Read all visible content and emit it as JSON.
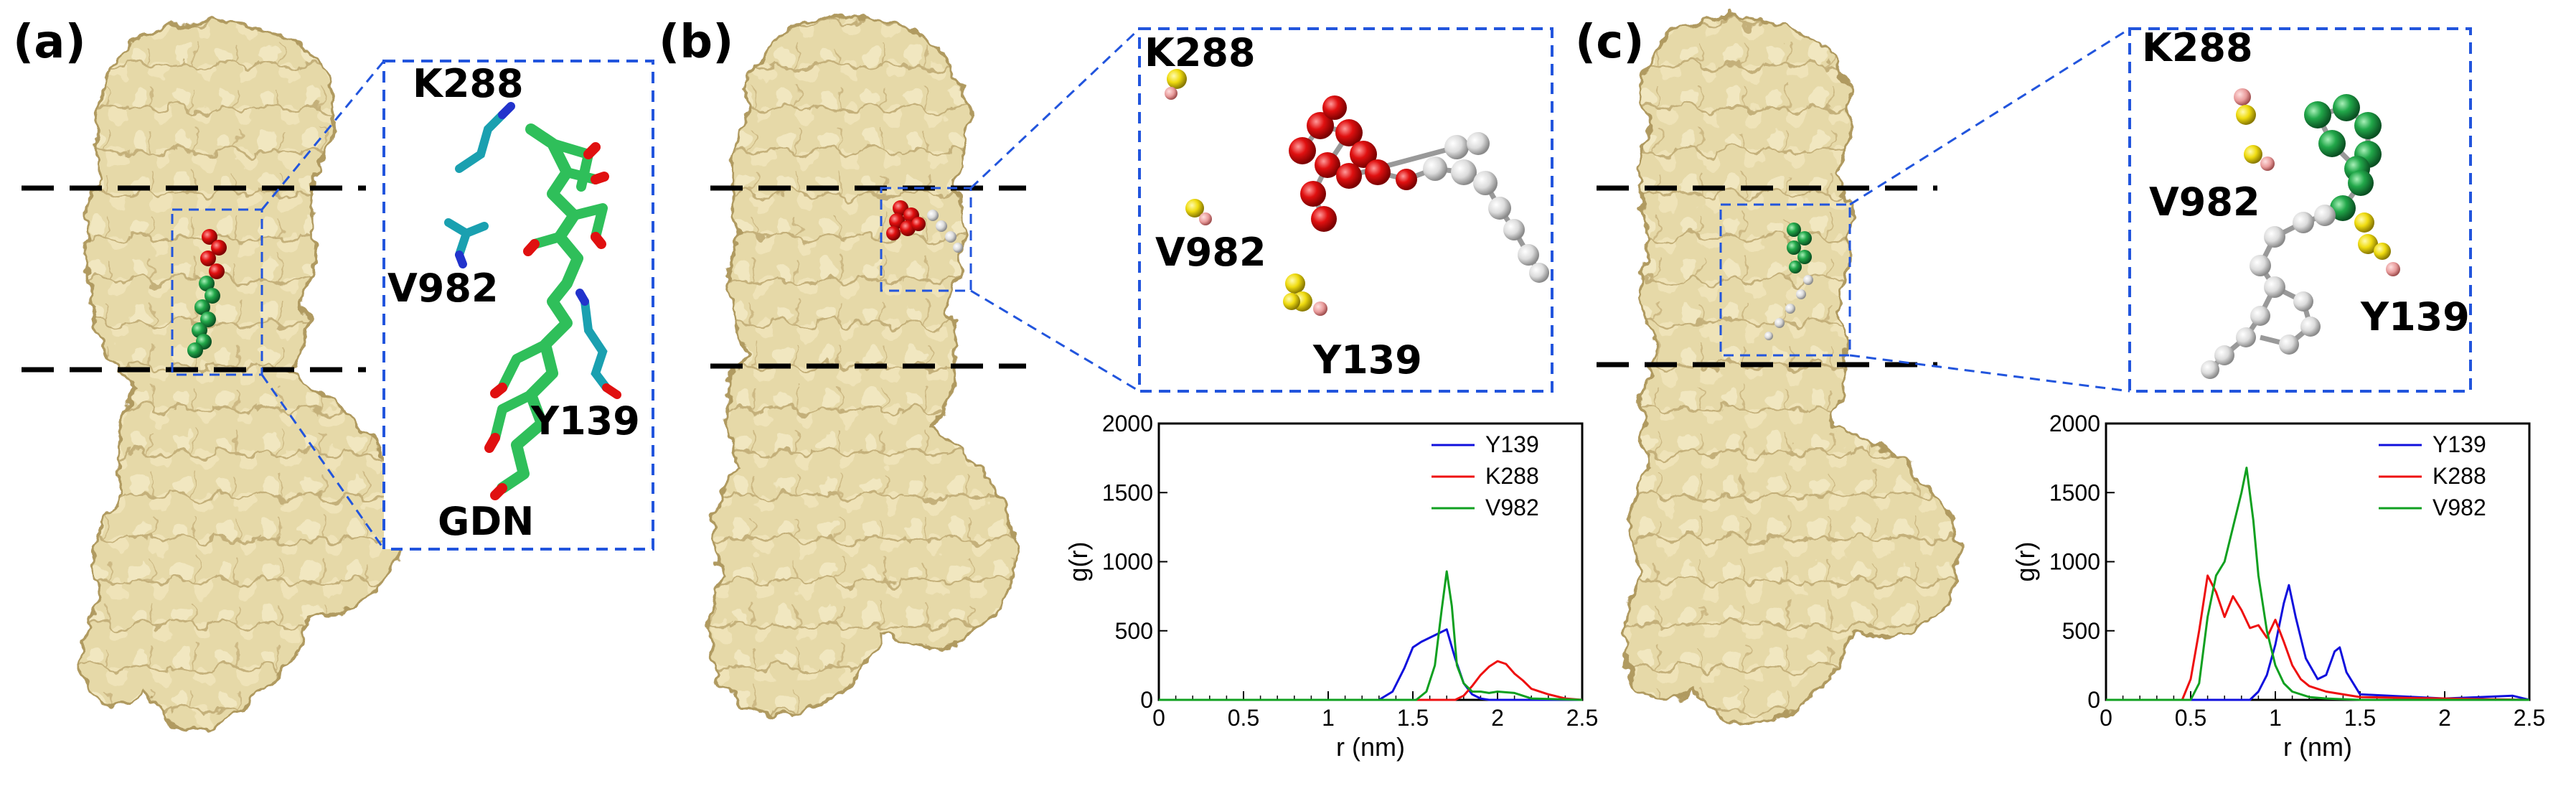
{
  "panels": [
    {
      "label": "(a)",
      "residues": [
        "K288",
        "V982",
        "Y139"
      ],
      "ligand": "GDN",
      "ligand_color": "#2fbf5a"
    },
    {
      "label": "(b)",
      "residues": [
        "K288",
        "V982",
        "Y139"
      ],
      "ligand_color": "#e01010"
    },
    {
      "label": "(c)",
      "residues": [
        "K288",
        "V982",
        "Y139"
      ],
      "ligand_color": "#22a84a"
    }
  ],
  "colors": {
    "protein_surface": "#e8dcae",
    "protein_shadow": "#b9a56e",
    "membrane_lines": "#000000",
    "zoom_box": "#2255dd",
    "residue_atoms": "#f2e21a",
    "residue_tip": "#f0a0a0",
    "y139_line": "#1010dd",
    "k288_line": "#ee1010",
    "v982_line": "#10a020"
  },
  "chart_data": [
    {
      "type": "line",
      "xlabel": "r (nm)",
      "ylabel": "g(r)",
      "xlim": [
        0,
        2.5
      ],
      "ylim": [
        0,
        2000
      ],
      "xticks": [
        "0",
        "0.5",
        "1",
        "1.5",
        "2",
        "2.5"
      ],
      "yticks": [
        "0",
        "500",
        "1000",
        "1500",
        "2000"
      ],
      "legend_position": "top-right",
      "series": [
        {
          "name": "Y139",
          "color": "#1010dd",
          "x": [
            0,
            1.3,
            1.38,
            1.45,
            1.5,
            1.55,
            1.6,
            1.65,
            1.7,
            1.75,
            1.8,
            1.85,
            1.9,
            1.95,
            2.0,
            2.5
          ],
          "y": [
            0,
            0,
            60,
            230,
            380,
            420,
            450,
            480,
            510,
            300,
            120,
            40,
            10,
            0,
            0,
            0
          ]
        },
        {
          "name": "K288",
          "color": "#ee1010",
          "x": [
            0,
            1.75,
            1.8,
            1.85,
            1.9,
            1.95,
            2.0,
            2.05,
            2.1,
            2.15,
            2.2,
            2.3,
            2.4,
            2.5
          ],
          "y": [
            0,
            0,
            30,
            100,
            180,
            240,
            280,
            260,
            190,
            140,
            80,
            40,
            10,
            0
          ]
        },
        {
          "name": "V982",
          "color": "#10a020",
          "x": [
            0,
            1.52,
            1.58,
            1.63,
            1.67,
            1.7,
            1.73,
            1.76,
            1.8,
            1.85,
            1.9,
            1.95,
            2.0,
            2.1,
            2.2,
            2.5
          ],
          "y": [
            0,
            0,
            60,
            250,
            650,
            930,
            680,
            250,
            120,
            60,
            60,
            50,
            60,
            50,
            10,
            0
          ]
        }
      ]
    },
    {
      "type": "line",
      "xlabel": "r (nm)",
      "ylabel": "g(r)",
      "xlim": [
        0,
        2.5
      ],
      "ylim": [
        0,
        2000
      ],
      "xticks": [
        "0",
        "0.5",
        "1",
        "1.5",
        "2",
        "2.5"
      ],
      "yticks": [
        "0",
        "500",
        "1000",
        "1500",
        "2000"
      ],
      "legend_position": "top-right",
      "series": [
        {
          "name": "Y139",
          "color": "#1010dd",
          "x": [
            0,
            0.85,
            0.9,
            0.95,
            1.0,
            1.05,
            1.08,
            1.12,
            1.18,
            1.25,
            1.3,
            1.35,
            1.38,
            1.42,
            1.5,
            2.0,
            2.4,
            2.5
          ],
          "y": [
            0,
            0,
            60,
            180,
            400,
            700,
            830,
            600,
            300,
            150,
            180,
            350,
            380,
            200,
            40,
            10,
            30,
            0
          ]
        },
        {
          "name": "K288",
          "color": "#ee1010",
          "x": [
            0,
            0.45,
            0.5,
            0.55,
            0.6,
            0.65,
            0.7,
            0.75,
            0.8,
            0.85,
            0.9,
            0.95,
            1.0,
            1.05,
            1.1,
            1.15,
            1.2,
            1.3,
            1.5,
            2.0,
            2.5
          ],
          "y": [
            0,
            0,
            150,
            500,
            900,
            780,
            600,
            750,
            650,
            520,
            540,
            450,
            580,
            420,
            250,
            150,
            100,
            60,
            20,
            10,
            0
          ]
        },
        {
          "name": "V982",
          "color": "#10a020",
          "x": [
            0,
            0.5,
            0.55,
            0.6,
            0.65,
            0.7,
            0.75,
            0.8,
            0.83,
            0.87,
            0.9,
            0.95,
            1.0,
            1.05,
            1.1,
            1.2,
            1.3,
            1.5,
            2.5
          ],
          "y": [
            0,
            0,
            120,
            600,
            900,
            1000,
            1250,
            1500,
            1680,
            1300,
            900,
            500,
            250,
            120,
            60,
            20,
            10,
            0,
            0
          ]
        }
      ]
    }
  ]
}
